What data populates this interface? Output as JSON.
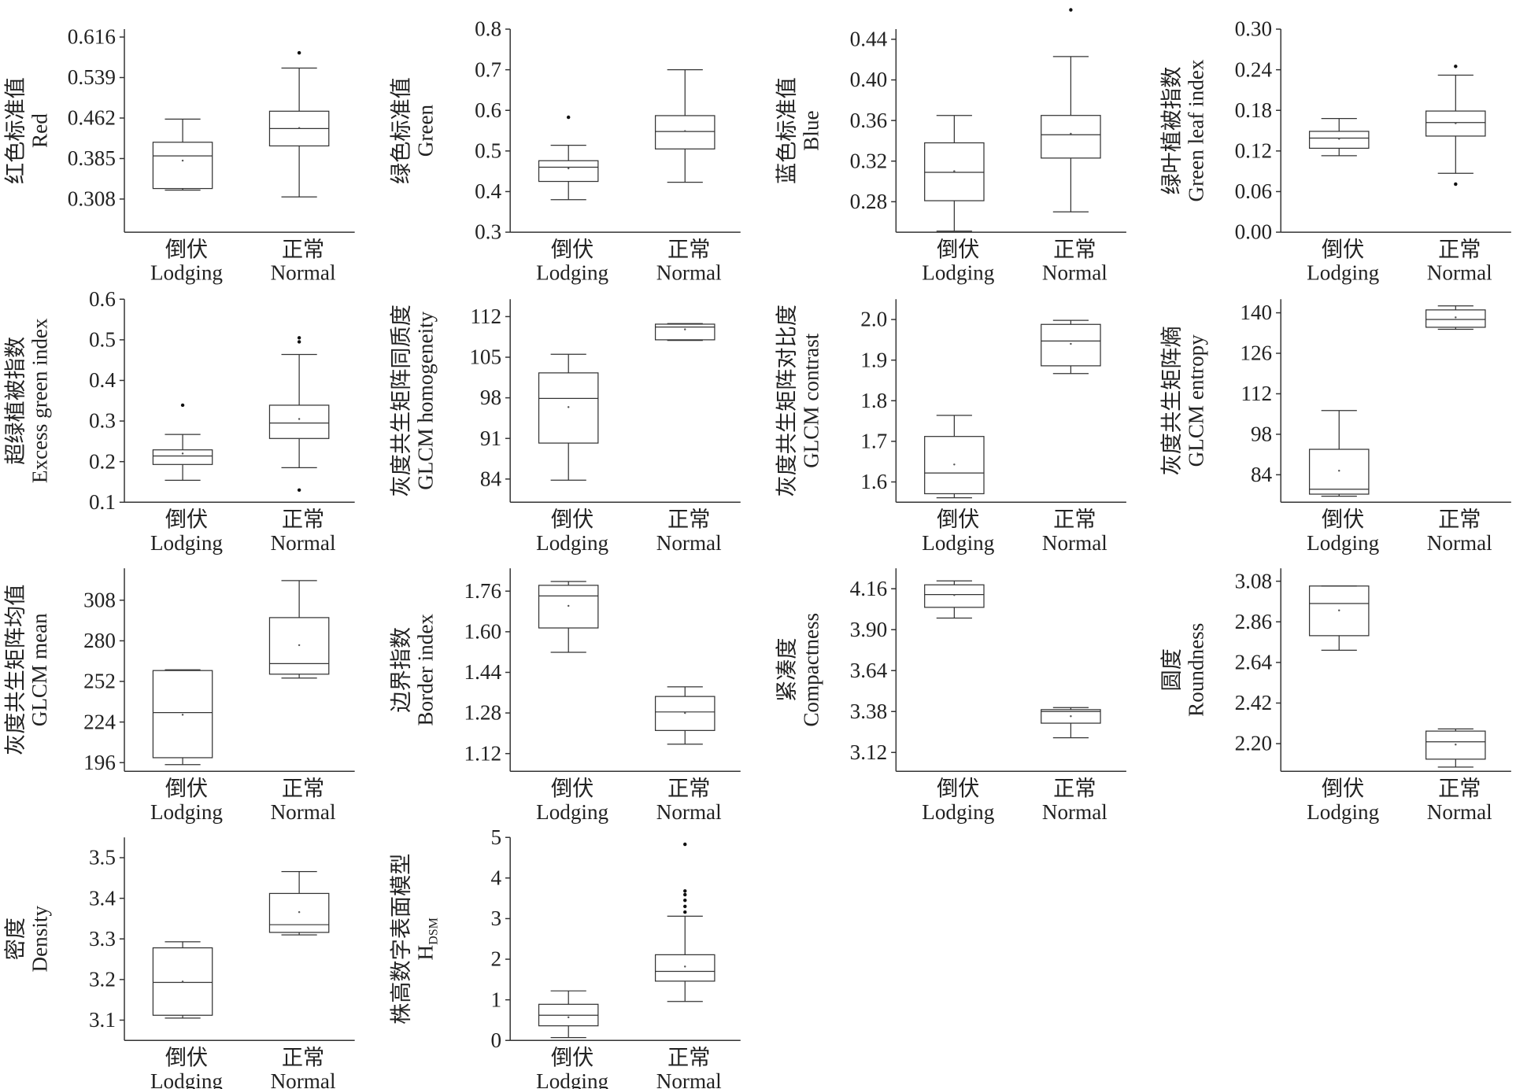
{
  "chart_data": [
    {
      "type": "box",
      "ylabel": [
        "红色标准值",
        "Red"
      ],
      "categories": [
        [
          "倒伏",
          "Lodging"
        ],
        [
          "正常",
          "Normal"
        ]
      ],
      "ylim": [
        0.245,
        0.631
      ],
      "yticks": [
        0.308,
        0.385,
        0.462,
        0.539,
        0.616
      ],
      "boxes": [
        {
          "whislo": 0.325,
          "q1": 0.328,
          "med": 0.39,
          "q3": 0.416,
          "whishi": 0.46,
          "mean": 0.381,
          "fliers": []
        },
        {
          "whislo": 0.312,
          "q1": 0.409,
          "med": 0.442,
          "q3": 0.475,
          "whishi": 0.557,
          "mean": 0.443,
          "fliers": [
            0.586
          ]
        }
      ]
    },
    {
      "type": "box",
      "ylabel": [
        "绿色标准值",
        "Green"
      ],
      "categories": [
        [
          "倒伏",
          "Lodging"
        ],
        [
          "正常",
          "Normal"
        ]
      ],
      "ylim": [
        0.3,
        0.8
      ],
      "yticks": [
        0.3,
        0.4,
        0.5,
        0.6,
        0.7,
        0.8
      ],
      "boxes": [
        {
          "whislo": 0.38,
          "q1": 0.425,
          "med": 0.46,
          "q3": 0.476,
          "whishi": 0.514,
          "mean": 0.457,
          "fliers": [
            0.583
          ]
        },
        {
          "whislo": 0.423,
          "q1": 0.505,
          "med": 0.548,
          "q3": 0.587,
          "whishi": 0.7,
          "mean": 0.549,
          "fliers": []
        }
      ]
    },
    {
      "type": "box",
      "ylabel": [
        "蓝色标准值",
        "Blue"
      ],
      "categories": [
        [
          "倒伏",
          "Lodging"
        ],
        [
          "正常",
          "Normal"
        ]
      ],
      "ylim": [
        0.25,
        0.45
      ],
      "yticks": [
        0.28,
        0.32,
        0.36,
        {
          "value": 0.4,
          "label": "0.40"
        },
        0.44
      ],
      "boxes": [
        {
          "whislo": 0.251,
          "q1": 0.281,
          "med": 0.309,
          "q3": 0.338,
          "whishi": 0.365,
          "mean": 0.31,
          "fliers": []
        },
        {
          "whislo": 0.27,
          "q1": 0.323,
          "med": 0.346,
          "q3": 0.365,
          "whishi": 0.423,
          "mean": 0.347,
          "fliers": [
            0.469
          ]
        }
      ]
    },
    {
      "type": "box",
      "ylabel": [
        "绿叶植被指数",
        "Green leaf index"
      ],
      "categories": [
        [
          "倒伏",
          "Lodging"
        ],
        [
          "正常",
          "Normal"
        ]
      ],
      "ylim": [
        0,
        0.3
      ],
      "yticks": [
        {
          "value": 0,
          "label": "0.00"
        },
        0.06,
        0.12,
        0.18,
        0.24,
        {
          "value": 0.3,
          "label": "0.30"
        }
      ],
      "boxes": [
        {
          "whislo": 0.113,
          "q1": 0.124,
          "med": 0.139,
          "q3": 0.149,
          "whishi": 0.168,
          "mean": 0.138,
          "fliers": []
        },
        {
          "whislo": 0.087,
          "q1": 0.142,
          "med": 0.162,
          "q3": 0.179,
          "whishi": 0.232,
          "mean": 0.161,
          "fliers": [
            0.245,
            0.071
          ]
        }
      ]
    },
    {
      "type": "box",
      "ylabel": [
        "超绿植被指数",
        "Excess green index"
      ],
      "categories": [
        [
          "倒伏",
          "Lodging"
        ],
        [
          "正常",
          "Normal"
        ]
      ],
      "ylim": [
        0.1,
        0.6
      ],
      "yticks": [
        0.1,
        0.2,
        0.3,
        0.4,
        0.5,
        0.6
      ],
      "boxes": [
        {
          "whislo": 0.154,
          "q1": 0.193,
          "med": 0.214,
          "q3": 0.229,
          "whishi": 0.267,
          "mean": 0.22,
          "fliers": [
            0.339
          ]
        },
        {
          "whislo": 0.185,
          "q1": 0.257,
          "med": 0.295,
          "q3": 0.339,
          "whishi": 0.464,
          "mean": 0.305,
          "fliers": [
            0.505,
            0.495,
            0.13
          ]
        }
      ]
    },
    {
      "type": "box",
      "ylabel": [
        "灰度共生矩阵同质度",
        "GLCM homogeneity"
      ],
      "categories": [
        [
          "倒伏",
          "Lodging"
        ],
        [
          "正常",
          "Normal"
        ]
      ],
      "ylim": [
        80,
        115
      ],
      "yticks": [
        84,
        91,
        98,
        105,
        112
      ],
      "boxes": [
        {
          "whislo": 83.8,
          "q1": 90.2,
          "med": 97.9,
          "q3": 102.3,
          "whishi": 105.5,
          "mean": 96.4,
          "fliers": []
        },
        {
          "whislo": 107.9,
          "q1": 108.0,
          "med": 110.2,
          "q3": 110.7,
          "whishi": 110.8,
          "mean": 109.8,
          "fliers": []
        }
      ]
    },
    {
      "type": "box",
      "ylabel": [
        "灰度共生矩阵对比度",
        "GLCM contrast"
      ],
      "categories": [
        [
          "倒伏",
          "Lodging"
        ],
        [
          "正常",
          "Normal"
        ]
      ],
      "ylim": [
        1.55,
        2.05
      ],
      "yticks": [
        1.6,
        1.7,
        1.8,
        1.9,
        {
          "value": 2,
          "label": "2.0"
        }
      ],
      "boxes": [
        {
          "whislo": 1.561,
          "q1": 1.571,
          "med": 1.622,
          "q3": 1.712,
          "whishi": 1.764,
          "mean": 1.643,
          "fliers": []
        },
        {
          "whislo": 1.867,
          "q1": 1.886,
          "med": 1.947,
          "q3": 1.988,
          "whishi": 1.998,
          "mean": 1.94,
          "fliers": []
        }
      ]
    },
    {
      "type": "box",
      "ylabel": [
        "灰度共生矩阵熵",
        "GLCM entropy"
      ],
      "categories": [
        [
          "倒伏",
          "Lodging"
        ],
        [
          "正常",
          "Normal"
        ]
      ],
      "ylim": [
        74.5,
        144.7
      ],
      "yticks": [
        84,
        98,
        112,
        126,
        140
      ],
      "boxes": [
        {
          "whislo": 76.6,
          "q1": 77.3,
          "med": 79,
          "q3": 92.8,
          "whishi": 106.2,
          "mean": 85.4,
          "fliers": []
        },
        {
          "whislo": 134.3,
          "q1": 135,
          "med": 137.7,
          "q3": 141,
          "whishi": 142.4,
          "mean": 138.4,
          "fliers": []
        }
      ]
    },
    {
      "type": "box",
      "ylabel": [
        "灰度共生矩阵均值",
        "GLCM mean"
      ],
      "categories": [
        [
          "倒伏",
          "Lodging"
        ],
        [
          "正常",
          "Normal"
        ]
      ],
      "ylim": [
        190,
        330
      ],
      "yticks": [
        196,
        224,
        252,
        280,
        308
      ],
      "boxes": [
        {
          "whislo": 194.6,
          "q1": 199.4,
          "med": 230.5,
          "q3": 259.5,
          "whishi": 260,
          "mean": 229,
          "fliers": []
        },
        {
          "whislo": 254.3,
          "q1": 257,
          "med": 264.3,
          "q3": 296,
          "whishi": 321.5,
          "mean": 277,
          "fliers": []
        }
      ]
    },
    {
      "type": "box",
      "ylabel": [
        "边界指数",
        "Border index"
      ],
      "categories": [
        [
          "倒伏",
          "Lodging"
        ],
        [
          "正常",
          "Normal"
        ]
      ],
      "ylim": [
        1.05,
        1.85
      ],
      "yticks": [
        1.12,
        1.28,
        1.44,
        {
          "value": 1.6,
          "label": "1.60"
        },
        1.76
      ],
      "boxes": [
        {
          "whislo": 1.519,
          "q1": 1.615,
          "med": 1.741,
          "q3": 1.783,
          "whishi": 1.798,
          "mean": 1.702,
          "fliers": []
        },
        {
          "whislo": 1.157,
          "q1": 1.211,
          "med": 1.284,
          "q3": 1.345,
          "whishi": 1.383,
          "mean": 1.28,
          "fliers": []
        }
      ]
    },
    {
      "type": "box",
      "ylabel": [
        "紧凑度",
        "Compactness"
      ],
      "categories": [
        [
          "倒伏",
          "Lodging"
        ],
        [
          "正常",
          "Normal"
        ]
      ],
      "ylim": [
        3.0,
        4.29
      ],
      "yticks": [
        3.12,
        3.38,
        3.64,
        {
          "value": 3.9,
          "label": "3.90"
        },
        4.16
      ],
      "boxes": [
        {
          "whislo": 3.974,
          "q1": 4.042,
          "med": 4.123,
          "q3": 4.185,
          "whishi": 4.21,
          "mean": 4.12,
          "fliers": []
        },
        {
          "whislo": 3.213,
          "q1": 3.306,
          "med": 3.38,
          "q3": 3.392,
          "whishi": 3.405,
          "mean": 3.35,
          "fliers": []
        }
      ]
    },
    {
      "type": "box",
      "ylabel": [
        "圆度",
        "Roundness"
      ],
      "categories": [
        [
          "倒伏",
          "Lodging"
        ],
        [
          "正常",
          "Normal"
        ]
      ],
      "ylim": [
        2.05,
        3.15
      ],
      "yticks": [
        {
          "value": 2.2,
          "label": "2.20"
        },
        2.42,
        2.64,
        2.86,
        3.08
      ],
      "boxes": [
        {
          "whislo": 2.706,
          "q1": 2.785,
          "med": 2.959,
          "q3": 3.054,
          "whishi": 3.054,
          "mean": 2.922,
          "fliers": []
        },
        {
          "whislo": 2.073,
          "q1": 2.116,
          "med": 2.21,
          "q3": 2.268,
          "whishi": 2.28,
          "mean": 2.195,
          "fliers": []
        }
      ]
    },
    {
      "type": "box",
      "ylabel": [
        "密度",
        "Density"
      ],
      "categories": [
        [
          "倒伏",
          "Lodging"
        ],
        [
          "正常",
          "Normal"
        ]
      ],
      "ylim": [
        3.05,
        3.55
      ],
      "yticks": [
        3.1,
        3.2,
        3.3,
        3.4,
        3.5
      ],
      "boxes": [
        {
          "whislo": 3.105,
          "q1": 3.112,
          "med": 3.193,
          "q3": 3.278,
          "whishi": 3.293,
          "mean": 3.195,
          "fliers": []
        },
        {
          "whislo": 3.31,
          "q1": 3.316,
          "med": 3.335,
          "q3": 3.412,
          "whishi": 3.466,
          "mean": 3.366,
          "fliers": []
        }
      ]
    },
    {
      "type": "box",
      "ylabel": [
        "株高数字表面模型",
        "H"
      ],
      "ylabel_sub": "DSM",
      "categories": [
        [
          "倒伏",
          "Lodging"
        ],
        [
          "正常",
          "Normal"
        ]
      ],
      "ylim": [
        0,
        5
      ],
      "yticks": [
        0,
        1,
        2,
        3,
        4,
        5
      ],
      "boxes": [
        {
          "whislo": 0.07,
          "q1": 0.36,
          "med": 0.62,
          "q3": 0.89,
          "whishi": 1.22,
          "mean": 0.57,
          "fliers": []
        },
        {
          "whislo": 0.96,
          "q1": 1.46,
          "med": 1.7,
          "q3": 2.11,
          "whishi": 3.06,
          "mean": 1.82,
          "fliers": [
            4.83,
            3.68,
            3.59,
            3.45,
            3.3,
            3.16
          ]
        }
      ]
    }
  ]
}
